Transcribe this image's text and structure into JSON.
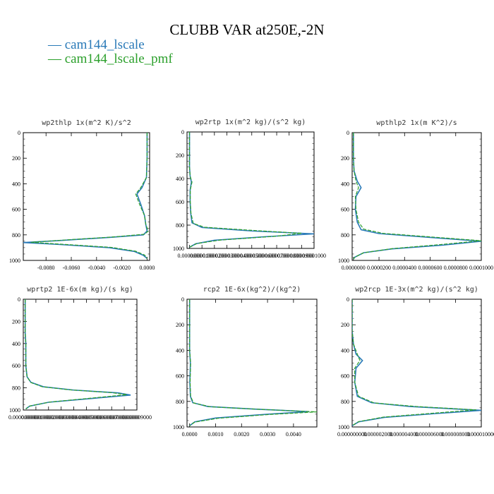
{
  "title": "CLUBB VAR at250E,-2N",
  "legend": [
    {
      "label": "cam144_lscale",
      "color": "#2a7ab8"
    },
    {
      "label": "cam144_lscale_pmf",
      "color": "#2ca02c"
    }
  ],
  "chart_data": [
    {
      "type": "line",
      "title": "wp2thlp  1x(m^2 K)/s^2",
      "xlim": [
        -0.0098,
        0.0002
      ],
      "ylim": [
        1000,
        0
      ],
      "x_ticks": [
        -0.008,
        -0.006,
        -0.004,
        -0.002,
        0.0
      ],
      "x_tick_labels": [
        "-0.0080",
        "-0.0060",
        "-0.0040",
        "-0.0020",
        "0.0000"
      ],
      "y_ticks": [
        0,
        200,
        400,
        600,
        800,
        1000
      ],
      "y_tick_labels": [
        "0",
        "200",
        "400",
        "600",
        "800",
        "1000"
      ],
      "series": [
        {
          "name": "cam144_lscale",
          "color": "#2a7ab8",
          "points": [
            [
              0,
              0
            ],
            [
              0,
              200
            ],
            [
              -5e-05,
              350
            ],
            [
              -0.0004,
              430
            ],
            [
              -0.0008,
              480
            ],
            [
              -0.0005,
              560
            ],
            [
              -0.0002,
              650
            ],
            [
              -0.0001,
              720
            ],
            [
              0,
              770
            ],
            [
              -0.0003,
              800
            ],
            [
              -0.003,
              820
            ],
            [
              -0.007,
              845
            ],
            [
              -0.0098,
              860
            ],
            [
              -0.007,
              875
            ],
            [
              -0.003,
              900
            ],
            [
              -0.001,
              930
            ],
            [
              -0.0003,
              960
            ],
            [
              0,
              985
            ]
          ]
        },
        {
          "name": "cam144_lscale_pmf",
          "color": "#2ca02c",
          "points": [
            [
              0,
              0
            ],
            [
              0,
              200
            ],
            [
              -5e-05,
              350
            ],
            [
              -0.0005,
              430
            ],
            [
              -0.0009,
              480
            ],
            [
              -0.0006,
              560
            ],
            [
              -0.0002,
              650
            ],
            [
              -0.0001,
              720
            ],
            [
              0.0001,
              770
            ],
            [
              -0.0002,
              795
            ],
            [
              -0.0025,
              815
            ],
            [
              -0.0065,
              840
            ],
            [
              -0.0092,
              858
            ],
            [
              -0.0066,
              874
            ],
            [
              -0.0028,
              898
            ],
            [
              -0.0009,
              928
            ],
            [
              -0.0002,
              958
            ],
            [
              0,
              985
            ]
          ]
        }
      ]
    },
    {
      "type": "line",
      "title": "wp2rtp  1x(m^2 kg)/(s^2 kg)",
      "xlim": [
        -2e-06,
        0.0001
      ],
      "ylim": [
        1000,
        0
      ],
      "x_ticks": [
        0,
        1e-05,
        2e-05,
        3e-05,
        4e-05,
        5e-05,
        6e-05,
        7e-05,
        8e-05,
        9e-05,
        0.0001
      ],
      "x_tick_labels": [
        "0.0000000",
        "0.0000100",
        "0.0000200",
        "0.0000300",
        "0.0000400",
        "0.0000500",
        "0.0000600",
        "0.0000700",
        "0.0000800",
        "0.0000900",
        "0.0001000"
      ],
      "y_ticks": [
        0,
        200,
        400,
        600,
        800,
        1000
      ],
      "y_tick_labels": [
        "0",
        "200",
        "400",
        "600",
        "800",
        "1000"
      ],
      "series": [
        {
          "name": "cam144_lscale",
          "color": "#2a7ab8",
          "points": [
            [
              0,
              0
            ],
            [
              0,
              300
            ],
            [
              5e-07,
              380
            ],
            [
              1.5e-06,
              430
            ],
            [
              5e-07,
              500
            ],
            [
              5e-07,
              600
            ],
            [
              1e-06,
              700
            ],
            [
              2e-06,
              780
            ],
            [
              1e-05,
              820
            ],
            [
              5e-05,
              850
            ],
            [
              0.0001,
              875
            ],
            [
              6e-05,
              900
            ],
            [
              2e-05,
              930
            ],
            [
              5e-06,
              960
            ],
            [
              0,
              990
            ]
          ]
        },
        {
          "name": "cam144_lscale_pmf",
          "color": "#2ca02c",
          "points": [
            [
              0,
              0
            ],
            [
              0,
              300
            ],
            [
              5e-07,
              380
            ],
            [
              2e-06,
              430
            ],
            [
              6e-07,
              500
            ],
            [
              6e-07,
              600
            ],
            [
              1.2e-06,
              700
            ],
            [
              3e-06,
              785
            ],
            [
              1.2e-05,
              818
            ],
            [
              5.5e-05,
              848
            ],
            [
              9e-05,
              870
            ],
            [
              7e-05,
              895
            ],
            [
              2.5e-05,
              928
            ],
            [
              6e-06,
              958
            ],
            [
              0,
              990
            ]
          ]
        }
      ]
    },
    {
      "type": "line",
      "title": "wpthlp2  1x(m K^2)/s",
      "xlim": [
        -1e-06,
        0.0001
      ],
      "ylim": [
        1000,
        0
      ],
      "x_ticks": [
        0,
        2e-05,
        4e-05,
        6e-05,
        8e-05,
        0.0001
      ],
      "x_tick_labels": [
        "0.0000000",
        "0.0000200",
        "0.0000400",
        "0.0000600",
        "0.0000800",
        "0.0001000"
      ],
      "y_ticks": [
        0,
        200,
        400,
        600,
        800,
        1000
      ],
      "y_tick_labels": [
        "0",
        "200",
        "400",
        "600",
        "800",
        "1000"
      ],
      "series": [
        {
          "name": "cam144_lscale",
          "color": "#2a7ab8",
          "points": [
            [
              0,
              0
            ],
            [
              0,
              200
            ],
            [
              5e-07,
              300
            ],
            [
              3e-06,
              380
            ],
            [
              6e-06,
              430
            ],
            [
              2e-06,
              500
            ],
            [
              1.5e-06,
              600
            ],
            [
              3e-06,
              700
            ],
            [
              6e-06,
              760
            ],
            [
              2e-05,
              790
            ],
            [
              6e-05,
              820
            ],
            [
              0.0001,
              850
            ],
            [
              7e-05,
              880
            ],
            [
              3e-05,
              910
            ],
            [
              8e-06,
              940
            ],
            [
              1e-06,
              975
            ],
            [
              0,
              990
            ]
          ]
        },
        {
          "name": "cam144_lscale_pmf",
          "color": "#2ca02c",
          "points": [
            [
              0,
              0
            ],
            [
              0,
              200
            ],
            [
              5e-07,
              300
            ],
            [
              2e-06,
              380
            ],
            [
              4e-06,
              430
            ],
            [
              1.5e-06,
              500
            ],
            [
              2e-06,
              600
            ],
            [
              4e-06,
              700
            ],
            [
              8e-06,
              755
            ],
            [
              2.3e-05,
              788
            ],
            [
              6.3e-05,
              818
            ],
            [
              0.0001,
              846
            ],
            [
              6.8e-05,
              876
            ],
            [
              3e-05,
              908
            ],
            [
              8e-06,
              940
            ],
            [
              1e-06,
              975
            ],
            [
              0,
              990
            ]
          ]
        }
      ]
    },
    {
      "type": "line",
      "title": "wprtp2  1E-6x(m kg)/(s kg)",
      "xlim": [
        0,
        9e-06
      ],
      "ylim": [
        1000,
        0
      ],
      "x_ticks": [
        0,
        1e-06,
        2e-06,
        3e-06,
        4e-06,
        5e-06,
        6e-06,
        7e-06,
        8e-06,
        9e-06
      ],
      "x_tick_labels": [
        "0.000000000",
        "0.000001000",
        "0.000002000",
        "0.000003000",
        "0.000004000",
        "0.000005000",
        "0.000006000",
        "0.000007000",
        "0.000008000",
        "0.000009000"
      ],
      "y_ticks": [
        0,
        200,
        400,
        600,
        800,
        1000
      ],
      "y_tick_labels": [
        "0",
        "200",
        "400",
        "600",
        "800",
        "1000"
      ],
      "series": [
        {
          "name": "cam144_lscale",
          "color": "#2a7ab8",
          "points": [
            [
              1.5e-07,
              0
            ],
            [
              1.5e-07,
              300
            ],
            [
              2e-07,
              400
            ],
            [
              2e-07,
              600
            ],
            [
              3e-07,
              700
            ],
            [
              6e-07,
              750
            ],
            [
              1.6e-06,
              790
            ],
            [
              4e-06,
              820
            ],
            [
              7.5e-06,
              845
            ],
            [
              8.5e-06,
              865
            ],
            [
              6e-06,
              890
            ],
            [
              2e-06,
              930
            ],
            [
              5e-07,
              965
            ],
            [
              2e-07,
              990
            ]
          ]
        },
        {
          "name": "cam144_lscale_pmf",
          "color": "#2ca02c",
          "points": [
            [
              1.5e-07,
              0
            ],
            [
              1.5e-07,
              300
            ],
            [
              2e-07,
              400
            ],
            [
              2e-07,
              600
            ],
            [
              3e-07,
              700
            ],
            [
              6e-07,
              752
            ],
            [
              1.5e-06,
              790
            ],
            [
              3.7e-06,
              818
            ],
            [
              7e-06,
              843
            ],
            [
              8.2e-06,
              862
            ],
            [
              5.8e-06,
              888
            ],
            [
              2.1e-06,
              928
            ],
            [
              5e-07,
              964
            ],
            [
              2e-07,
              990
            ]
          ]
        }
      ]
    },
    {
      "type": "line",
      "title": "rcp2  1E-6x(kg^2)/(kg^2)",
      "xlim": [
        -0.0001,
        0.0049
      ],
      "ylim": [
        1000,
        0
      ],
      "x_ticks": [
        0,
        0.001,
        0.002,
        0.003,
        0.004
      ],
      "x_tick_labels": [
        "0.0000",
        "0.0010",
        "0.0020",
        "0.0030",
        "0.0040"
      ],
      "y_ticks": [
        0,
        200,
        400,
        600,
        800,
        1000
      ],
      "y_tick_labels": [
        "0",
        "200",
        "400",
        "600",
        "800",
        "1000"
      ],
      "series": [
        {
          "name": "cam144_lscale",
          "color": "#2a7ab8",
          "points": [
            [
              0,
              0
            ],
            [
              0,
              400
            ],
            [
              3e-05,
              500
            ],
            [
              1e-05,
              650
            ],
            [
              3e-05,
              760
            ],
            [
              0.00012,
              810
            ],
            [
              0.0007,
              840
            ],
            [
              0.0025,
              860
            ],
            [
              0.0046,
              880
            ],
            [
              0.003,
              900
            ],
            [
              0.001,
              930
            ],
            [
              0.0002,
              960
            ],
            [
              0,
              990
            ]
          ]
        },
        {
          "name": "cam144_lscale_pmf",
          "color": "#2ca02c",
          "points": [
            [
              0,
              0
            ],
            [
              0,
              400
            ],
            [
              4e-05,
              500
            ],
            [
              2e-05,
              650
            ],
            [
              4e-05,
              760
            ],
            [
              0.00015,
              812
            ],
            [
              0.0008,
              842
            ],
            [
              0.0027,
              862
            ],
            [
              0.0049,
              882
            ],
            [
              0.0031,
              902
            ],
            [
              0.0011,
              932
            ],
            [
              0.0002,
              962
            ],
            [
              0,
              990
            ]
          ]
        }
      ]
    },
    {
      "type": "line",
      "title": "wp2rcp  1E-3x(m^2 kg)/(s^2 kg)",
      "xlim": [
        0,
        1e-05
      ],
      "ylim": [
        1000,
        0
      ],
      "x_ticks": [
        0,
        2e-06,
        4e-06,
        6e-06,
        8e-06,
        1e-05
      ],
      "x_tick_labels": [
        "0.000000000",
        "0.000002000",
        "0.000004000",
        "0.000006000",
        "0.000008000",
        "0.000010000"
      ],
      "y_ticks": [
        0,
        200,
        400,
        600,
        800,
        1000
      ],
      "y_tick_labels": [
        "0",
        "200",
        "400",
        "600",
        "800",
        "1000"
      ],
      "series": [
        {
          "name": "cam144_lscale",
          "color": "#2a7ab8",
          "points": [
            [
              0,
              0
            ],
            [
              0,
              250
            ],
            [
              1e-07,
              350
            ],
            [
              3e-07,
              430
            ],
            [
              8e-07,
              480
            ],
            [
              3e-07,
              540
            ],
            [
              2e-07,
              650
            ],
            [
              4e-07,
              760
            ],
            [
              1.5e-06,
              810
            ],
            [
              4.5e-06,
              840
            ],
            [
              1e-05,
              870
            ],
            [
              6.5e-06,
              895
            ],
            [
              2.5e-06,
              925
            ],
            [
              5e-07,
              960
            ],
            [
              0,
              990
            ]
          ]
        },
        {
          "name": "cam144_lscale_pmf",
          "color": "#2ca02c",
          "points": [
            [
              0,
              0
            ],
            [
              0,
              250
            ],
            [
              1e-07,
              350
            ],
            [
              4e-07,
              430
            ],
            [
              6e-07,
              480
            ],
            [
              2e-07,
              540
            ],
            [
              2e-07,
              650
            ],
            [
              5e-07,
              760
            ],
            [
              1.7e-06,
              812
            ],
            [
              5e-06,
              840
            ],
            [
              9.6e-06,
              866
            ],
            [
              6.3e-06,
              892
            ],
            [
              2.4e-06,
              923
            ],
            [
              5e-07,
              958
            ],
            [
              0,
              990
            ]
          ]
        }
      ]
    }
  ]
}
